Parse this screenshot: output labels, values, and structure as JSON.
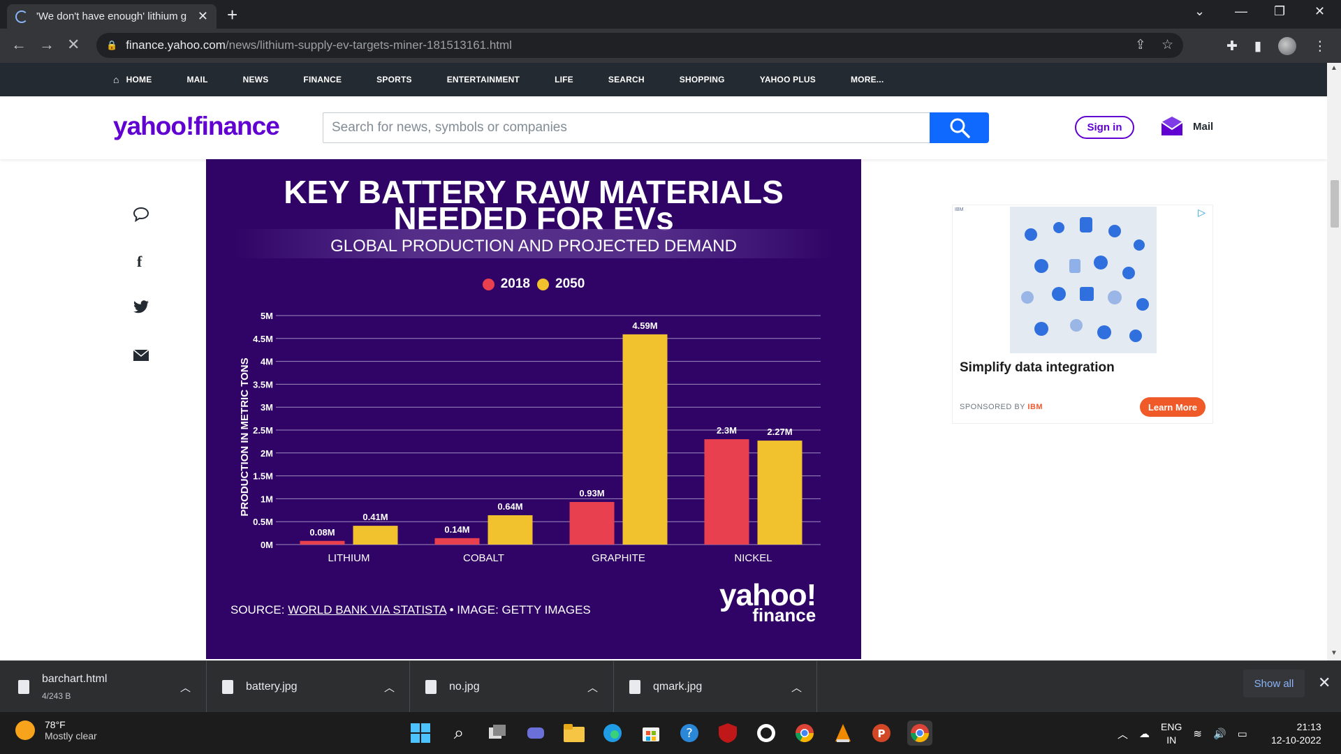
{
  "browser": {
    "tab_title": "'We don't have enough' lithium g",
    "url_host": "finance.yahoo.com",
    "url_path": "/news/lithium-supply-ev-targets-miner-181513161.html"
  },
  "yahoo_nav": {
    "items": [
      "HOME",
      "MAIL",
      "NEWS",
      "FINANCE",
      "SPORTS",
      "ENTERTAINMENT",
      "LIFE",
      "SEARCH",
      "SHOPPING",
      "YAHOO PLUS",
      "MORE..."
    ]
  },
  "header": {
    "logo": "yahoo!finance",
    "search_placeholder": "Search for news, symbols or companies",
    "signin_label": "Sign in",
    "mail_label": "Mail"
  },
  "infographic": {
    "title_line1": "KEY BATTERY RAW MATERIALS",
    "title_line2": "NEEDED FOR EVs",
    "subtitle": "GLOBAL PRODUCTION AND PROJECTED DEMAND",
    "source_prefix": "SOURCE: ",
    "source_link": "WORLD BANK VIA STATISTA",
    "source_suffix": " • IMAGE: GETTY IMAGES",
    "logo_line1": "yahoo!",
    "logo_line2": "finance"
  },
  "chart_data": {
    "type": "bar",
    "categories": [
      "LITHIUM",
      "COBALT",
      "GRAPHITE",
      "NICKEL"
    ],
    "series": [
      {
        "name": "2018",
        "color": "#e8404f",
        "values": [
          0.08,
          0.14,
          0.93,
          2.3
        ],
        "labels": [
          "0.08M",
          "0.14M",
          "0.93M",
          "2.3M"
        ]
      },
      {
        "name": "2050",
        "color": "#f2c12e",
        "values": [
          0.41,
          0.64,
          4.59,
          2.27
        ],
        "labels": [
          "0.41M",
          "0.64M",
          "4.59M",
          "2.27M"
        ]
      }
    ],
    "ylabel": "PRODUCTION IN METRIC TONS",
    "yticks": [
      "0M",
      "0.5M",
      "1M",
      "1.5M",
      "2M",
      "2.5M",
      "3M",
      "3.5M",
      "4M",
      "4.5M",
      "5M"
    ],
    "ylim": [
      0,
      5
    ],
    "grid": true,
    "legend": "top-center"
  },
  "ad": {
    "brand": "IBM",
    "headline": "Simplify data integration",
    "sponsor_prefix": "SPONSORED BY",
    "sponsor_name": "IBM",
    "cta": "Learn More"
  },
  "downloads": [
    {
      "name": "barchart.html",
      "sub": "4/243 B"
    },
    {
      "name": "battery.jpg"
    },
    {
      "name": "no.jpg"
    },
    {
      "name": "qmark.jpg"
    }
  ],
  "downloads_show_all": "Show all",
  "taskbar": {
    "temperature": "78°F",
    "condition": "Mostly clear",
    "lang_line1": "ENG",
    "lang_line2": "IN",
    "time": "21:13",
    "date": "12-10-2022"
  }
}
